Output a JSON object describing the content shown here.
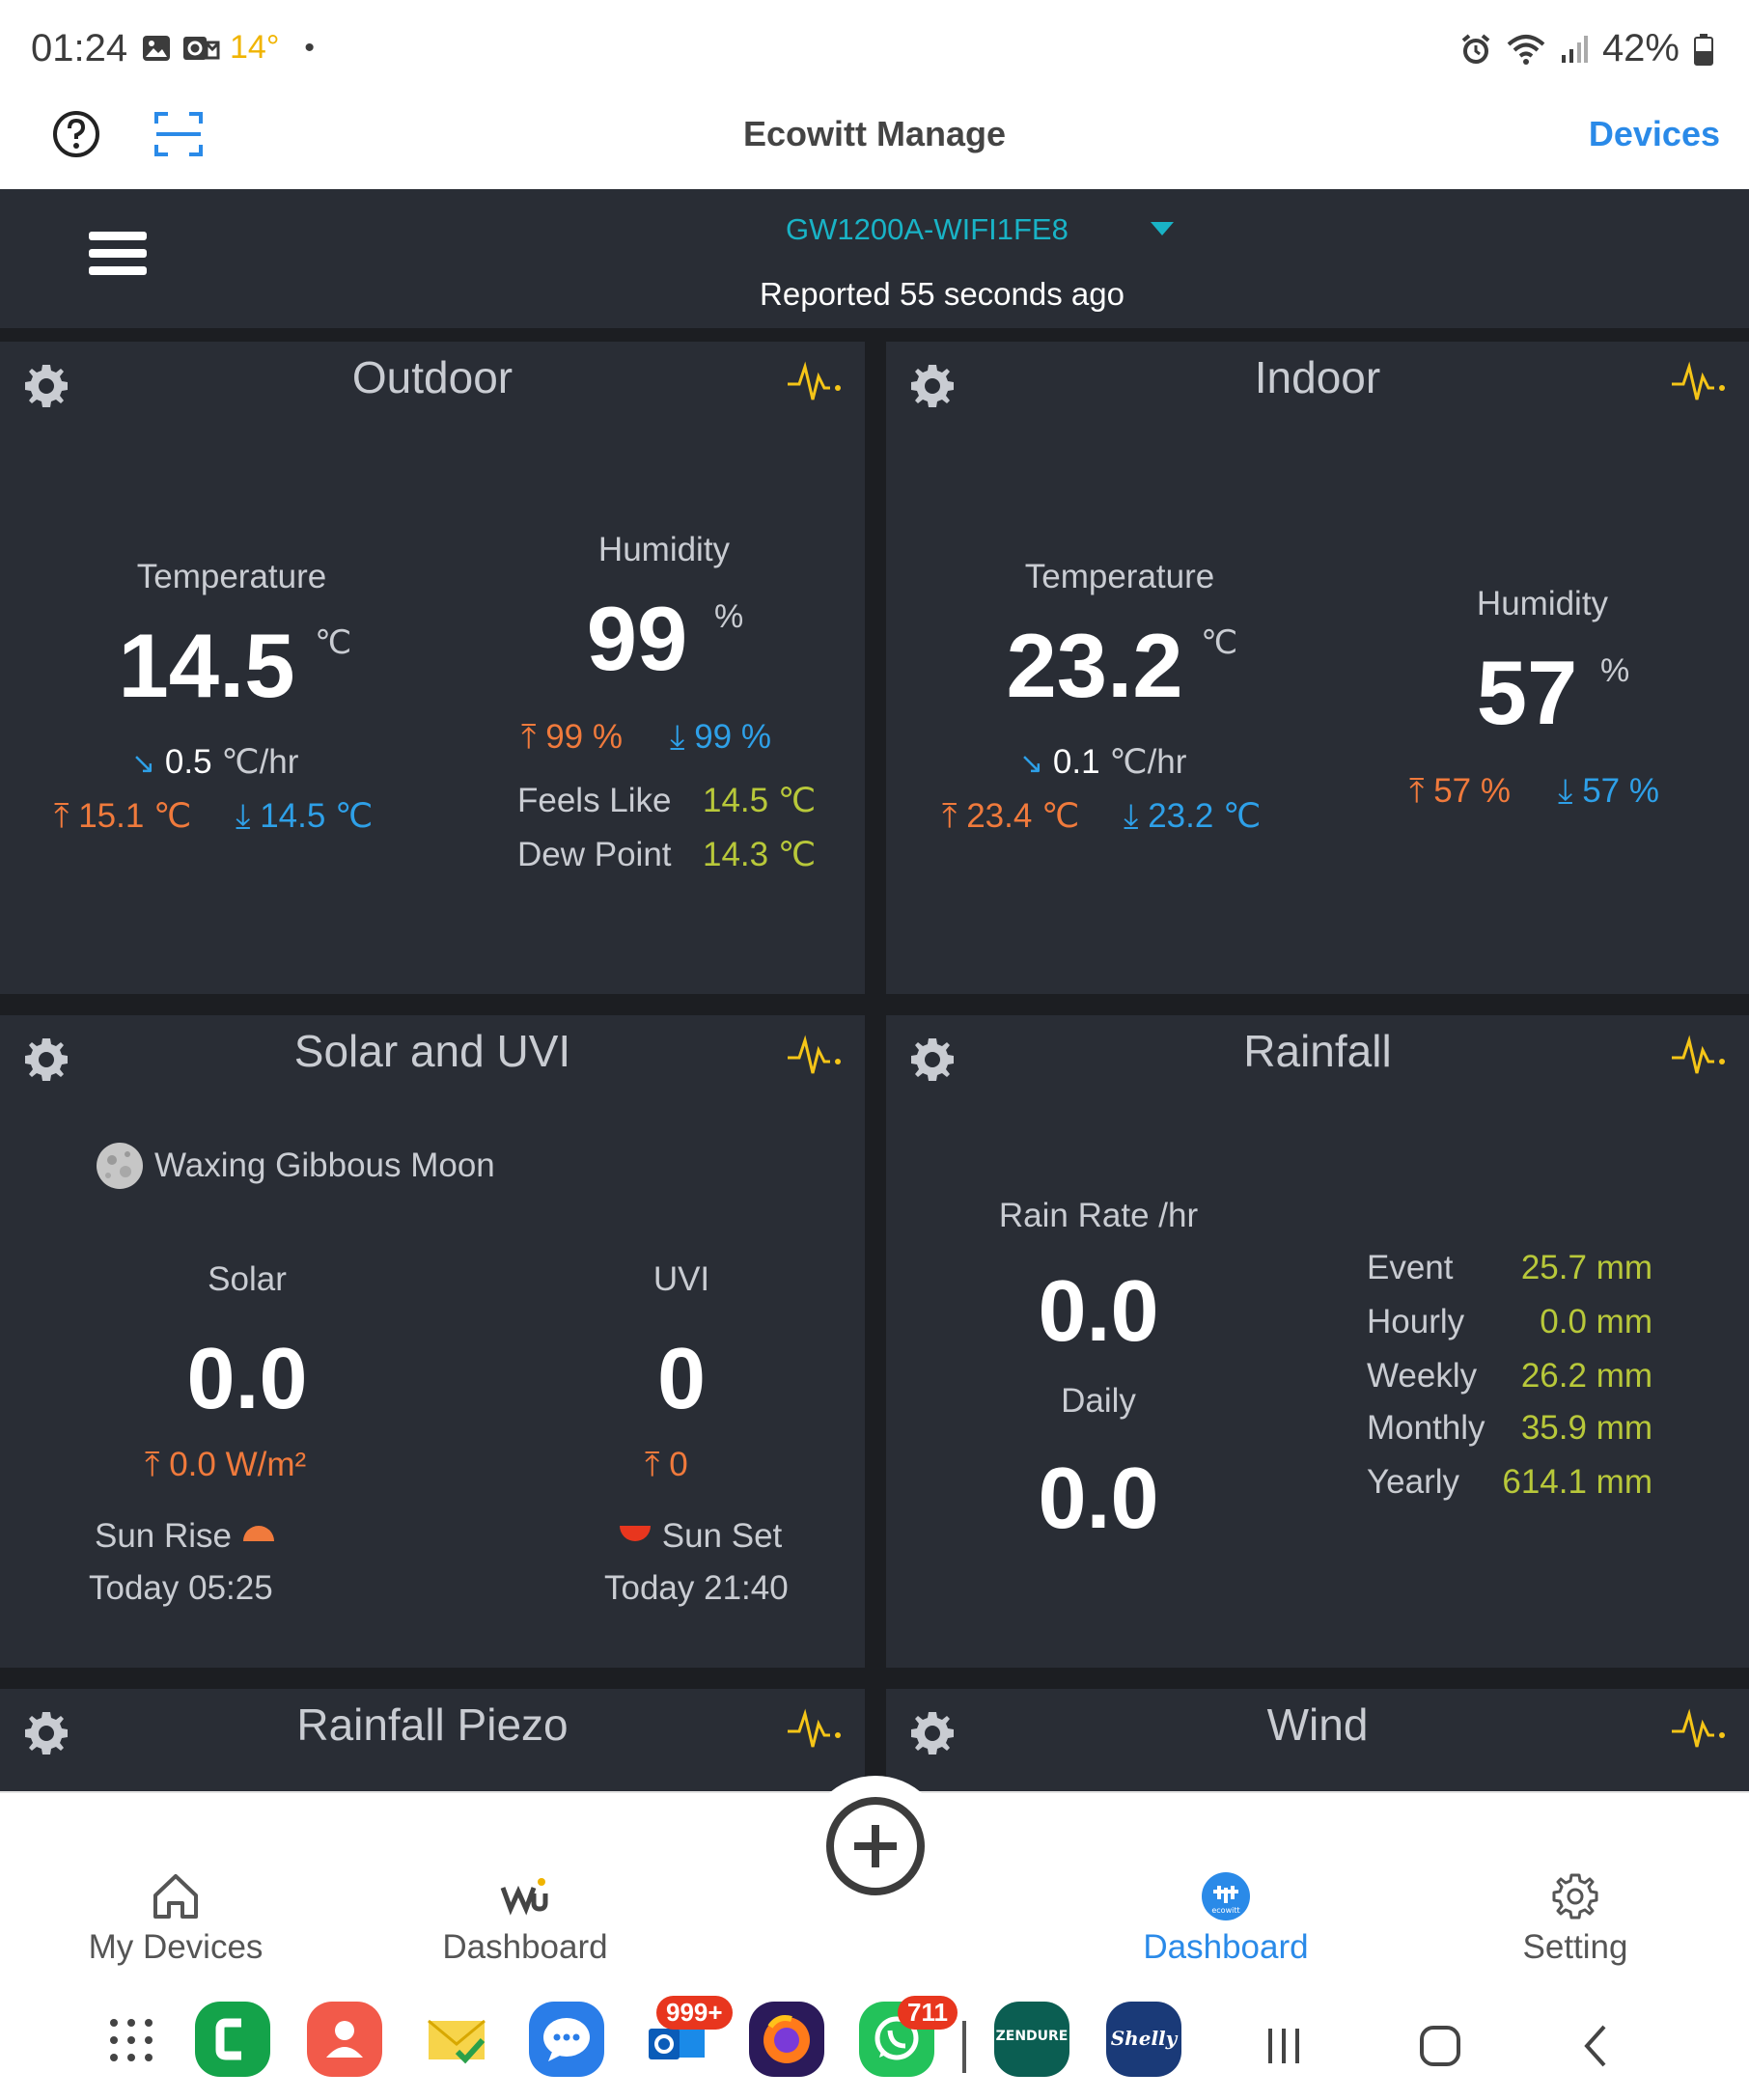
{
  "status_bar": {
    "time": "01:24",
    "temp": "14°",
    "dot": "•",
    "battery": "42%",
    "icons": [
      "image-icon",
      "outlook-status-icon",
      "alarm-icon",
      "wifi-icon",
      "signal-icon",
      "battery-icon"
    ]
  },
  "app_bar": {
    "title": "Ecowitt Manage",
    "devices_label": "Devices",
    "icons": [
      "help-icon",
      "scan-icon"
    ]
  },
  "device": {
    "name": "GW1200A-WIFI1FE8",
    "reported": "Reported 55 seconds ago"
  },
  "outdoor": {
    "title": "Outdoor",
    "temp_label": "Temperature",
    "temp_value": "14.5",
    "temp_unit": "℃",
    "temp_trend": "0.5",
    "temp_trend_unit": "℃/hr",
    "temp_high": "15.1 ℃",
    "temp_low": "14.5 ℃",
    "hum_label": "Humidity",
    "hum_value": "99",
    "hum_unit": "%",
    "hum_high": "99 %",
    "hum_low": "99 %",
    "feels_label": "Feels Like",
    "feels_value": "14.5 ℃",
    "dew_label": "Dew Point",
    "dew_value": "14.3 ℃"
  },
  "indoor": {
    "title": "Indoor",
    "temp_label": "Temperature",
    "temp_value": "23.2",
    "temp_unit": "℃",
    "temp_trend": "0.1",
    "temp_trend_unit": "℃/hr",
    "temp_high": "23.4 ℃",
    "temp_low": "23.2 ℃",
    "hum_label": "Humidity",
    "hum_value": "57",
    "hum_unit": "%",
    "hum_high": "57 %",
    "hum_low": "57 %"
  },
  "solar": {
    "title": "Solar and UVI",
    "moon": "Waxing Gibbous Moon",
    "solar_label": "Solar",
    "solar_value": "0.0",
    "solar_high": "0.0 W/m²",
    "uvi_label": "UVI",
    "uvi_value": "0",
    "uvi_high": "0",
    "sunrise_label": "Sun Rise",
    "sunrise_time": "Today 05:25",
    "sunset_label": "Sun Set",
    "sunset_time": "Today 21:40"
  },
  "rainfall": {
    "title": "Rainfall",
    "rate_label": "Rain Rate /hr",
    "rate_value": "0.0",
    "daily_label": "Daily",
    "daily_value": "0.0",
    "rows": [
      {
        "label": "Event",
        "value": "25.7 mm"
      },
      {
        "label": "Hourly",
        "value": "0.0 mm"
      },
      {
        "label": "Weekly",
        "value": "26.2 mm"
      },
      {
        "label": "Monthly",
        "value": "35.9 mm"
      },
      {
        "label": "Yearly",
        "value": "614.1 mm"
      }
    ]
  },
  "piezo": {
    "title": "Rainfall Piezo"
  },
  "wind": {
    "title": "Wind"
  },
  "nav": {
    "my_devices": "My Devices",
    "wu_dashboard": "Dashboard",
    "ecowitt_dashboard": "Dashboard",
    "setting": "Setting"
  },
  "dock": {
    "outlook_badge": "999+",
    "whatsapp_badge": "711",
    "zendure_label": "ZENDURE",
    "shelly_label": "Shelly"
  },
  "colors": {
    "accent": "#2a8ae8",
    "card_bg": "#292d35",
    "high": "#f07a3c",
    "low": "#2ea0e8",
    "secondary_value": "#b8c83a",
    "icon_yellow": "#f5c518"
  }
}
